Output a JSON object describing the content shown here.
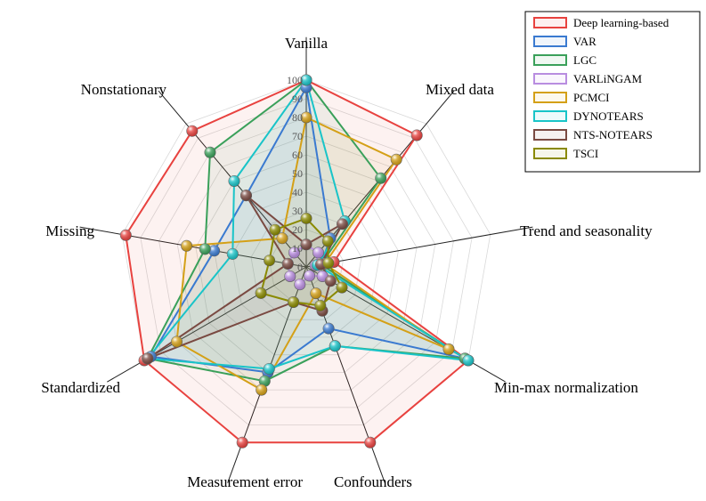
{
  "chart_data": {
    "type": "radar",
    "title": "",
    "axes": [
      "Vanilla",
      "Mixed data",
      "Trend and seasonality",
      "Min-max normalization",
      "Confounders",
      "Measurement error",
      "Standardized",
      "Missing",
      "Nonstationary"
    ],
    "rlim": [
      0,
      100
    ],
    "ticks": [
      0,
      10,
      20,
      30,
      40,
      50,
      60,
      70,
      80,
      90,
      100
    ],
    "legend_position": "top-right",
    "series": [
      {
        "name": "Deep learning-based",
        "color": "#e8423f",
        "values": [
          100,
          92,
          15,
          100,
          100,
          100,
          100,
          98,
          95
        ]
      },
      {
        "name": "VAR",
        "color": "#3a7ad0",
        "values": [
          96,
          20,
          8,
          98,
          35,
          60,
          96,
          50,
          50
        ]
      },
      {
        "name": "LGC",
        "color": "#3aa05a",
        "values": [
          100,
          62,
          8,
          98,
          45,
          65,
          98,
          55,
          80
        ]
      },
      {
        "name": "VARLiNGAM",
        "color": "#b98de0",
        "values": [
          12,
          10,
          5,
          10,
          5,
          10,
          10,
          10,
          10
        ]
      },
      {
        "name": "PCMCI",
        "color": "#d4a017",
        "values": [
          80,
          75,
          10,
          88,
          15,
          70,
          80,
          65,
          20
        ]
      },
      {
        "name": "DYNOTEARS",
        "color": "#19c4c8",
        "values": [
          100,
          32,
          6,
          100,
          45,
          58,
          98,
          40,
          60
        ]
      },
      {
        "name": "NTS-NOTEARS",
        "color": "#7a4a42",
        "values": [
          12,
          30,
          8,
          15,
          25,
          20,
          98,
          10,
          50
        ]
      },
      {
        "name": "TSCI",
        "color": "#8a8a00",
        "values": [
          26,
          18,
          12,
          22,
          22,
          20,
          28,
          20,
          26
        ]
      }
    ]
  }
}
